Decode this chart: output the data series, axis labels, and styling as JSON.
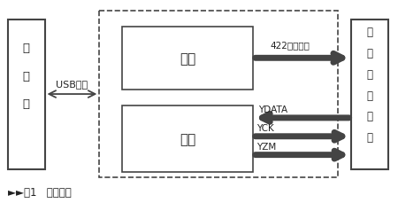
{
  "bg_color": "#ffffff",
  "box_edge": "#444444",
  "box_fill": "#ffffff",
  "text_color": "#222222",
  "fig_width": 4.5,
  "fig_height": 2.3,
  "dpi": 100,
  "caption": "►►图1   系统框图",
  "comp_label": "计算机",
  "dev_label": "数字接口设备",
  "send_label": "发送",
  "recv_label": "接收",
  "usb_label": "USB总线",
  "sig422_label": "422串行信号",
  "ydata_label": "YDATA",
  "yck_label": "YCK",
  "yzm_label": "YZM"
}
